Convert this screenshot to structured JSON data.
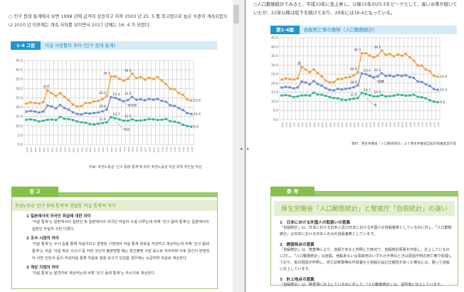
{
  "left_page": {
    "intro": "○ 인구 동태 통계에서 보면 1998 년에 급격히 상승하고 이후 2003 년 25. 5 를 최고점으로 높은 수준이 계속되었으나 2010 년 이후에는 계속 저하를 보이면서 2017 년에는 16. 4 가 되었다.",
    "figure_tag": "1-4 그림",
    "figure_title": "자살 사망률의 추이 (인구 동태 통계)",
    "source": "자료: 후생노동성 '인구 동태 통계'에 따라 후생노동성 자살 대책 추진실 작성",
    "ref_tab": "참 고",
    "ref_subtitle": "후생노동성 '인구 동태 통계'와 경찰청 '자살 통계'의 차이",
    "ref_items": [
      {
        "heading": "1  일본에서의 외국인 취급에 대한 차이",
        "body": "'자살 통계'는 일본에서의 일본인 및 일본에서의 외국인 자살자 수를 다루는데 비해 '인구 동태 통계'는 일본에서의 일본인 자살자 수만 다룬다."
      },
      {
        "heading": "2  조사 시점의 차이",
        "body": "'자살 통계'는 수사 등을 통해 자살이라고 판명된 시점에서 자살 통계 원표를 작성하고 계상하는데 비해 '인구 동태 통계'는 자살, 타살 혹은 사고사 중 어떤 것인지 불분명할 때는 원인불명 사망 등으로 처리하며 이후 원인이 판명되어 사망 진단서 등의 작성자를 통해 자살로 정정 보고가 있었을 경우에는 소급하여 자살로 계상한다."
      },
      {
        "heading": "3  계상 지점의 차이",
        "body": "'자살 통계'는 발견지로 계상하는데 비해 '인구 동태 통계'는 주소지로 계상한다."
      }
    ]
  },
  "right_page": {
    "intro": "○人口動態統計でみると、平成10年に急上昇し、以後15年の25.5をピークとして、高い水準が続いていたが、22年以降は低下を続けており、29年には16.4となっている。",
    "figure_tag": "第1-4図",
    "figure_title": "自殺死亡率の推移（人口動態統計）",
    "source": "資料：厚生労働省「人口動態統計」より厚生労働省自殺対策推進室作成",
    "ref_tab": "参 考",
    "ref_title": "厚生労働省「人口動態統計」と警察庁「自殺統計」の違い",
    "ref_items": [
      {
        "heading": "1　日本における外国人の取扱いの差異",
        "body": "「自殺統計」は、日本における日本人及び日本における外国人の自殺者数としているのに対し、「人口動態統計」は日本における日本人のみの自殺者数としています。"
      },
      {
        "heading": "2　調査時点の差異",
        "body": "「自殺統計」は、捜査等により、自殺であると判明した時点で、自殺統計原票を作成し、計上しているのに対し、「人口動態統計」は自殺、他殺あるいは事故死のいずれか不明のときは原因不明の死亡等で処理しており、後日原因が判明し、死亡診断書等の作成者から自殺の旨訂正報告があった場合には、遡って自殺に計上しています。"
      },
      {
        "heading": "3　計上地点の差異",
        "body": "「自殺統計」は、発見地に計上しているのに対して、「人口動態統計」は、住所地に計上しています。"
      }
    ]
  },
  "viewer": {
    "prev_label": "◂",
    "next_label": "▸"
  },
  "chart_data": [
    {
      "type": "line",
      "title": "자살 사망률의 추이 (인구 동태 통계)",
      "ylim": [
        0,
        45
      ],
      "yticks": [
        "0.0",
        "5.0",
        "10.0",
        "15.0",
        "20.0",
        "25.0",
        "30.0",
        "35.0",
        "40.0",
        "45.0"
      ],
      "x": [
        1978,
        1979,
        1980,
        1981,
        1982,
        1983,
        1984,
        1985,
        1986,
        1987,
        1988,
        1989,
        1990,
        1991,
        1992,
        1993,
        1994,
        1995,
        1996,
        1997,
        1998,
        1999,
        2000,
        2001,
        2002,
        2003,
        2004,
        2005,
        2006,
        2007,
        2008,
        2009,
        2010,
        2011,
        2012,
        2013,
        2014,
        2015,
        2016,
        2017
      ],
      "xtick_labels": [
        "1978",
        "1979",
        "1980",
        "1981",
        "1982",
        "1983",
        "1984",
        "1985",
        "1986",
        "1987",
        "1988",
        "1989",
        "1990",
        "1991",
        "1992",
        "1993",
        "1994",
        "1995",
        "1996",
        "1997",
        "1998",
        "1999",
        "2000",
        "2001",
        "2002",
        "2003",
        "2004",
        "2005",
        "2006",
        "2007",
        "2008",
        "2009",
        "2010",
        "2011",
        "2012",
        "2013",
        "2014",
        "2015",
        "2016",
        "2017"
      ],
      "series": [
        {
          "name": "남성",
          "color": "#f0a040",
          "values": [
            22.0,
            22.6,
            22.3,
            22.0,
            22.7,
            28.9,
            27.5,
            26.1,
            27.6,
            25.6,
            23.8,
            21.5,
            20.4,
            20.6,
            22.3,
            22.3,
            23.1,
            23.4,
            24.3,
            26.0,
            36.5,
            36.5,
            35.2,
            34.2,
            35.2,
            38.0,
            35.6,
            36.1,
            34.8,
            35.8,
            35.1,
            36.2,
            34.2,
            32.4,
            29.8,
            29.7,
            27.6,
            26.6,
            24.1,
            23.6
          ]
        },
        {
          "name": "총합계",
          "color": "#6b8fd0",
          "values": [
            17.6,
            18.0,
            17.7,
            17.2,
            17.7,
            20.9,
            20.4,
            19.4,
            21.2,
            19.6,
            18.7,
            17.3,
            16.4,
            16.1,
            16.9,
            16.6,
            16.9,
            17.2,
            17.8,
            18.8,
            25.4,
            25.0,
            24.1,
            23.3,
            23.8,
            25.5,
            24.0,
            24.2,
            23.7,
            24.4,
            24.0,
            24.4,
            23.4,
            22.9,
            21.0,
            20.7,
            19.5,
            18.5,
            16.8,
            16.4
          ]
        },
        {
          "name": "여성",
          "color": "#34b59c",
          "values": [
            13.3,
            13.5,
            13.1,
            12.4,
            12.8,
            13.3,
            13.4,
            13.2,
            14.8,
            13.8,
            13.7,
            13.1,
            12.4,
            11.9,
            11.7,
            11.0,
            10.8,
            11.2,
            11.5,
            11.9,
            14.7,
            14.1,
            13.4,
            12.8,
            12.8,
            13.5,
            12.8,
            12.9,
            13.2,
            13.7,
            13.5,
            13.2,
            13.3,
            13.7,
            12.5,
            12.3,
            11.7,
            10.7,
            9.9,
            9.6
          ]
        }
      ],
      "annotations": [
        {
          "i": 20,
          "v": 36.5,
          "text": "36.5"
        },
        {
          "i": 19,
          "v": 26.0,
          "text": "26.0"
        },
        {
          "i": 25,
          "v": 38.0,
          "text": "38.0"
        },
        {
          "i": 19,
          "v": 18.8,
          "text": "18.8"
        },
        {
          "i": 20,
          "v": 25.4,
          "text": "25.4"
        },
        {
          "i": 25,
          "v": 25.5,
          "text": "25.5"
        },
        {
          "i": 20,
          "v": 14.7,
          "text": "14.7"
        },
        {
          "i": 19,
          "v": 11.9,
          "text": "11.9"
        },
        {
          "i": 25,
          "v": 13.5,
          "text": "13.5"
        },
        {
          "i": 39,
          "v": 23.6,
          "text": "23.6"
        },
        {
          "i": 39,
          "v": 16.4,
          "text": "16.4"
        },
        {
          "i": 39,
          "v": 9.6,
          "text": "9.6"
        }
      ]
    },
    {
      "type": "line",
      "title": "自殺死亡率の推移（人口動態統計）",
      "ylim": [
        0,
        45
      ],
      "series_labels": [
        "男",
        "総数",
        "女"
      ],
      "same_values_as": "chart_data.0",
      "annotations_same": true
    }
  ]
}
